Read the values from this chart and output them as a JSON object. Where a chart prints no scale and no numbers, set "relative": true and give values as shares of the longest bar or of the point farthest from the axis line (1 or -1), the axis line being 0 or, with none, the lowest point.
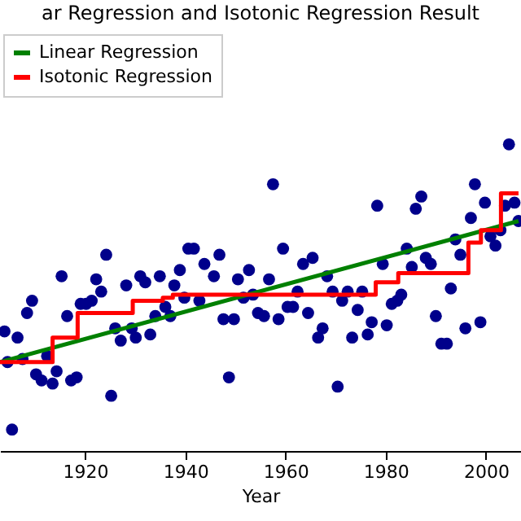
{
  "chart_data": {
    "type": "scatter",
    "title": "ar Regression and Isotonic Regression Result",
    "xlabel": "Year",
    "relative": true,
    "xlim": [
      1903,
      2007
    ],
    "xticks": [
      1920,
      1940,
      1960,
      1980,
      2000
    ],
    "grid": false,
    "legend": "top left",
    "series": [
      {
        "marker": "circle",
        "color": "#00008b",
        "x": [
          1903.9,
          1904.5,
          1905.4,
          1906.5,
          1907.5,
          1908.4,
          1909.4,
          1910.2,
          1911.3,
          1912.4,
          1913.5,
          1914.3,
          1915.3,
          1916.4,
          1917.2,
          1918.3,
          1919.1,
          1920.2,
          1921.3,
          1922.2,
          1923.2,
          1924.2,
          1925.2,
          1926.0,
          1927.1,
          1928.2,
          1929.3,
          1930.1,
          1931.0,
          1932.0,
          1933.0,
          1934.0,
          1934.9,
          1936.0,
          1937.0,
          1937.8,
          1938.9,
          1939.8,
          1940.6,
          1941.7,
          1942.8,
          1943.8,
          1945.7,
          1946.8,
          1947.6,
          1948.7,
          1949.7,
          1950.5,
          1951.6,
          1952.7,
          1953.5,
          1954.5,
          1955.7,
          1956.7,
          1957.5,
          1958.6,
          1959.5,
          1960.4,
          1961.5,
          1962.4,
          1963.5,
          1964.5,
          1965.4,
          1966.5,
          1967.4,
          1968.3,
          1969.4,
          1970.4,
          1971.3,
          1972.4,
          1973.3,
          1974.4,
          1975.3,
          1976.4,
          1977.2,
          1978.3,
          1979.4,
          1980.2,
          1981.2,
          1982.3,
          1983.1,
          1984.2,
          1985.2,
          1986.0,
          1987.1,
          1988.0,
          1989.0,
          1990.0,
          1991.1,
          1992.2,
          1993.0,
          1993.9,
          1994.9,
          1995.9,
          1997.0,
          1997.8,
          1998.9,
          1999.8,
          2000.9,
          2001.9,
          2002.9,
          2003.8,
          2004.6,
          2005.7,
          2006.5
        ],
        "values": [
          0.39,
          0.29,
          0.07,
          0.37,
          0.3,
          0.45,
          0.49,
          0.25,
          0.23,
          0.31,
          0.22,
          0.26,
          0.57,
          0.44,
          0.23,
          0.24,
          0.48,
          0.48,
          0.49,
          0.56,
          0.52,
          0.64,
          0.18,
          0.4,
          0.36,
          0.54,
          0.4,
          0.37,
          0.57,
          0.55,
          0.38,
          0.44,
          0.57,
          0.47,
          0.44,
          0.54,
          0.59,
          0.5,
          0.66,
          0.66,
          0.49,
          0.61,
          0.57,
          0.64,
          0.43,
          0.24,
          0.43,
          0.56,
          0.5,
          0.59,
          0.51,
          0.45,
          0.44,
          0.56,
          0.87,
          0.43,
          0.66,
          0.47,
          0.47,
          0.52,
          0.61,
          0.45,
          0.63,
          0.37,
          0.4,
          0.57,
          0.52,
          0.21,
          0.49,
          0.52,
          0.37,
          0.46,
          0.52,
          0.38,
          0.42,
          0.8,
          0.61,
          0.41,
          0.48,
          0.49,
          0.51,
          0.66,
          0.6,
          0.79,
          0.83,
          0.63,
          0.61,
          0.44,
          0.35,
          0.35,
          0.53,
          0.69,
          0.64,
          0.4,
          0.76,
          0.87,
          0.42,
          0.81,
          0.7,
          0.67,
          0.72,
          0.8,
          1.0,
          0.81,
          0.75
        ]
      },
      {
        "type": "line",
        "name": "Linear Regression",
        "color": "#008000",
        "x": [
          1903,
          2006.5
        ],
        "values": [
          0.29,
          0.75
        ]
      },
      {
        "type": "step",
        "name": "Isotonic Regression",
        "color": "#ff0000",
        "x": [
          1903,
          1913.5,
          1918.5,
          1929.5,
          1935.5,
          1937.5,
          1978,
          1982.5,
          1996.5,
          1999,
          2003,
          2006.5
        ],
        "values": [
          0.29,
          0.37,
          0.45,
          0.49,
          0.5,
          0.51,
          0.55,
          0.58,
          0.68,
          0.72,
          0.84,
          0.84
        ]
      }
    ]
  }
}
